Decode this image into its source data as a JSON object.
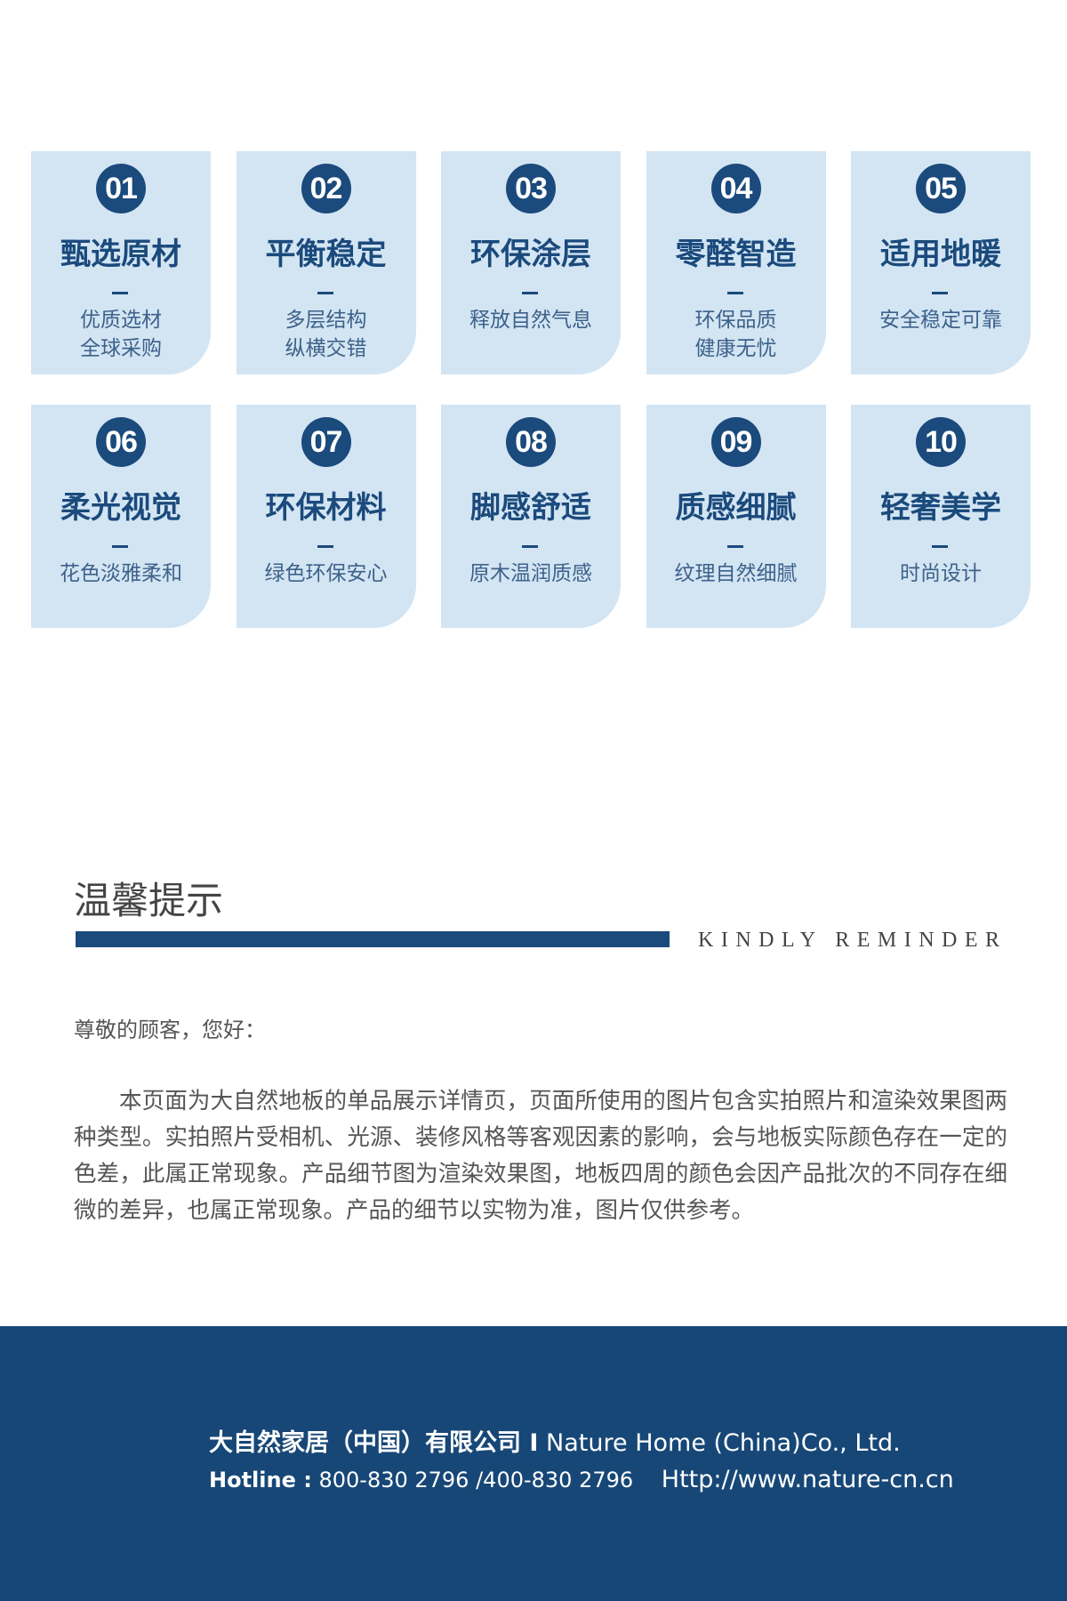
{
  "features": [
    {
      "num": "01",
      "title": "甄选原材",
      "lines": [
        "优质选材",
        "全球采购"
      ]
    },
    {
      "num": "02",
      "title": "平衡稳定",
      "lines": [
        "多层结构",
        "纵横交错"
      ]
    },
    {
      "num": "03",
      "title": "环保涂层",
      "lines": [
        "释放自然气息"
      ]
    },
    {
      "num": "04",
      "title": "零醛智造",
      "lines": [
        "环保品质",
        "健康无忧"
      ]
    },
    {
      "num": "05",
      "title": "适用地暖",
      "lines": [
        "安全稳定可靠"
      ]
    },
    {
      "num": "06",
      "title": "柔光视觉",
      "lines": [
        "花色淡雅柔和"
      ]
    },
    {
      "num": "07",
      "title": "环保材料",
      "lines": [
        "绿色环保安心"
      ]
    },
    {
      "num": "08",
      "title": "脚感舒适",
      "lines": [
        "原木温润质感"
      ]
    },
    {
      "num": "09",
      "title": "质感细腻",
      "lines": [
        "纹理自然细腻"
      ]
    },
    {
      "num": "10",
      "title": "轻奢美学",
      "lines": [
        "时尚设计"
      ]
    }
  ],
  "reminder": {
    "title": "温馨提示",
    "subtitle": "KINDLY REMINDER",
    "greeting": "尊敬的顾客，您好：",
    "body": "本页面为大自然地板的单品展示详情页，页面所使用的图片包含实拍照片和渲染效果图两种类型。实拍照片受相机、光源、装修风格等客观因素的影响，会与地板实际颜色存在一定的色差，此属正常现象。产品细节图为渲染效果图，地板四周的颜色会因产品批次的不同存在细微的差异，也属正常现象。产品的细节以实物为准，图片仅供参考。"
  },
  "footer": {
    "company_cn": "大自然家居（中国）有限公司 I",
    "company_en": "Nature Home (China)Co., Ltd.",
    "hotline_label": "Hotline :",
    "hotline": "800-830 2796 /400-830 2796",
    "website": "Http://www.nature-cn.cn"
  },
  "colors": {
    "accent": "#1b4a7c",
    "card_bg": "#d3e5f3",
    "footer_bg": "#174777"
  }
}
